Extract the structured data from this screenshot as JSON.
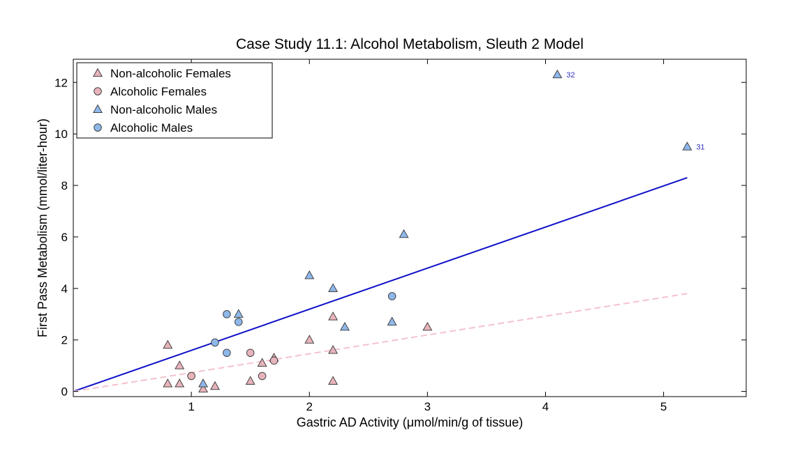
{
  "chart_data": {
    "type": "scatter",
    "title": "Case Study 11.1: Alcohol Metabolism, Sleuth 2 Model",
    "xlabel": "Gastric AD Activity (μmol/min/g of tissue)",
    "ylabel": "First Pass Metabolism (mmol/liter-hour)",
    "xlim": [
      0,
      5.7
    ],
    "ylim": [
      -0.2,
      12.9
    ],
    "xticks": [
      1,
      2,
      3,
      4,
      5
    ],
    "yticks": [
      0,
      2,
      4,
      6,
      8,
      10,
      12
    ],
    "grid": false,
    "legend_position": "top-left",
    "series": [
      {
        "name": "Non-alcoholic Females",
        "marker": "triangle",
        "color": "#e8b4bc",
        "points": [
          [
            0.8,
            1.8
          ],
          [
            0.8,
            0.3
          ],
          [
            0.9,
            1.0
          ],
          [
            0.9,
            0.3
          ],
          [
            1.1,
            0.1
          ],
          [
            1.2,
            0.2
          ],
          [
            1.5,
            0.4
          ],
          [
            1.6,
            1.1
          ],
          [
            1.7,
            1.3
          ],
          [
            2.0,
            2.0
          ],
          [
            2.2,
            2.9
          ],
          [
            2.2,
            1.6
          ],
          [
            2.2,
            0.4
          ],
          [
            3.0,
            2.5
          ]
        ]
      },
      {
        "name": "Alcoholic Females",
        "marker": "circle",
        "color": "#e8b4bc",
        "points": [
          [
            1.0,
            0.6
          ],
          [
            1.5,
            1.5
          ],
          [
            1.6,
            0.6
          ],
          [
            1.7,
            1.2
          ]
        ]
      },
      {
        "name": "Non-alcoholic Males",
        "marker": "triangle",
        "color": "#8fb8ea",
        "points": [
          [
            1.1,
            0.3
          ],
          [
            1.4,
            3.0
          ],
          [
            2.0,
            4.5
          ],
          [
            2.2,
            4.0
          ],
          [
            2.3,
            2.5
          ],
          [
            2.7,
            2.7
          ],
          [
            2.8,
            6.1
          ],
          [
            4.1,
            12.3
          ],
          [
            5.2,
            9.5
          ]
        ]
      },
      {
        "name": "Alcoholic Males",
        "marker": "circle",
        "color": "#8fb8ea",
        "points": [
          [
            1.2,
            1.9
          ],
          [
            1.3,
            3.0
          ],
          [
            1.3,
            1.5
          ],
          [
            1.4,
            2.7
          ],
          [
            2.7,
            3.7
          ]
        ]
      }
    ],
    "fit_lines": [
      {
        "color": "#1010c8",
        "style": "solid",
        "from": [
          0,
          0
        ],
        "to": [
          5.2,
          8.3
        ]
      },
      {
        "color": "#f4c2cc",
        "style": "dashed",
        "from": [
          0,
          0
        ],
        "to": [
          5.2,
          3.8
        ]
      }
    ],
    "annotations": [
      {
        "text": "32",
        "x": 4.1,
        "y": 12.3,
        "color": "#3030c0"
      },
      {
        "text": "31",
        "x": 5.2,
        "y": 9.5,
        "color": "#3030c0"
      }
    ]
  }
}
